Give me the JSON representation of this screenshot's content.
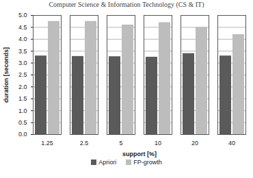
{
  "chart_data": {
    "type": "bar",
    "title": "Computer Science & Information Technology (CS & IT)",
    "x_label": "support [%]",
    "y_label": "duration [seconds]",
    "categories": [
      "1.25",
      "2.5",
      "5",
      "10",
      "20",
      "40"
    ],
    "series": [
      {
        "name": "Apriori",
        "color": "#5a5a5a",
        "values": [
          3.3,
          3.28,
          3.27,
          3.25,
          3.4,
          3.3
        ]
      },
      {
        "name": "FP-growth",
        "color": "#bdbdbd",
        "values": [
          4.75,
          4.75,
          4.6,
          4.7,
          4.5,
          4.2
        ]
      }
    ],
    "ylim": [
      0,
      5
    ],
    "yticks": [
      0,
      0.5,
      1,
      1.5,
      2,
      2.5,
      3,
      3.5,
      4,
      4.5,
      5
    ],
    "grid": true,
    "legend": "bottom"
  }
}
